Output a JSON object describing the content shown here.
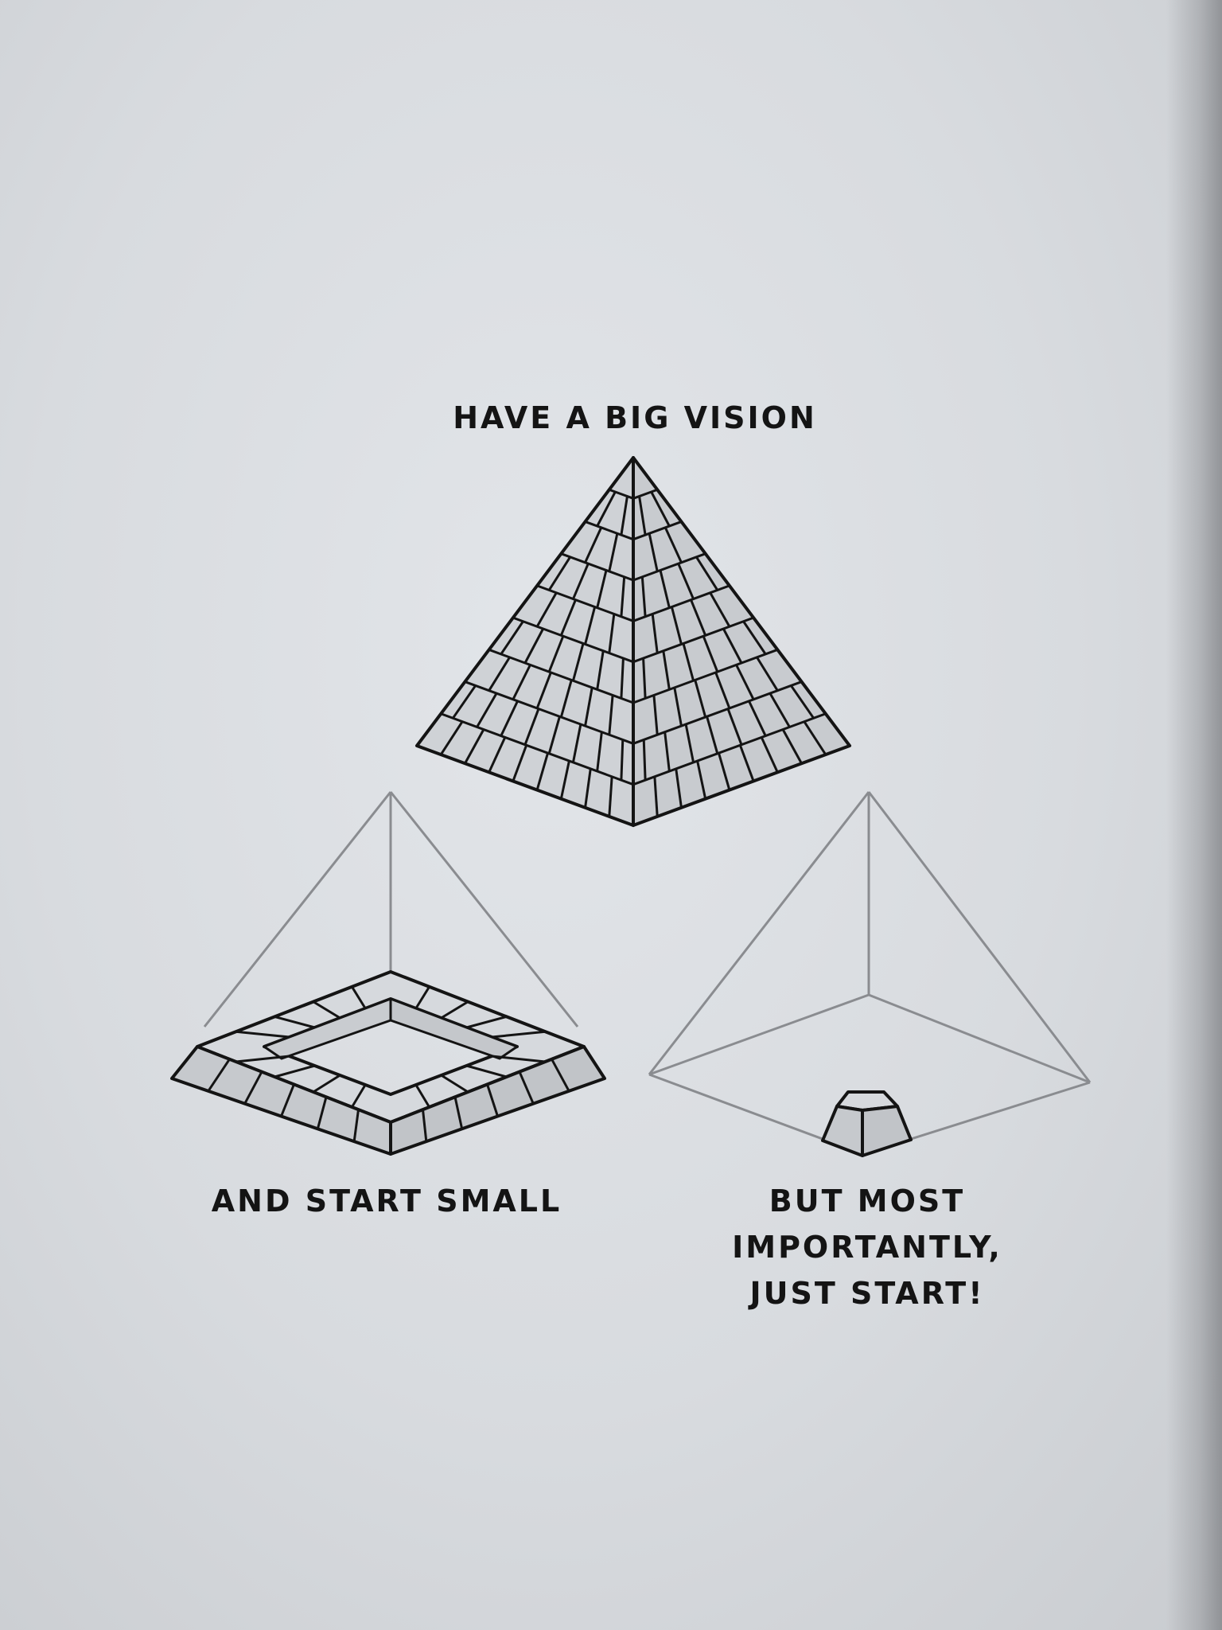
{
  "captions": {
    "top": "HAVE A BIG VISION",
    "left": "AND START SMALL",
    "right_lines": [
      "BUT MOST",
      "IMPORTANTLY,",
      "JUST START!"
    ]
  },
  "colors": {
    "paper": "#dfe2e6",
    "ink": "#141414",
    "brick_fill": "#cfd2d6",
    "guide_line": "#8a8c90"
  },
  "diagram": {
    "top_pyramid": "complete brick pyramid",
    "left_pyramid": "first course of bricks laid as a square ring",
    "right_pyramid": "a single brick at the base"
  }
}
